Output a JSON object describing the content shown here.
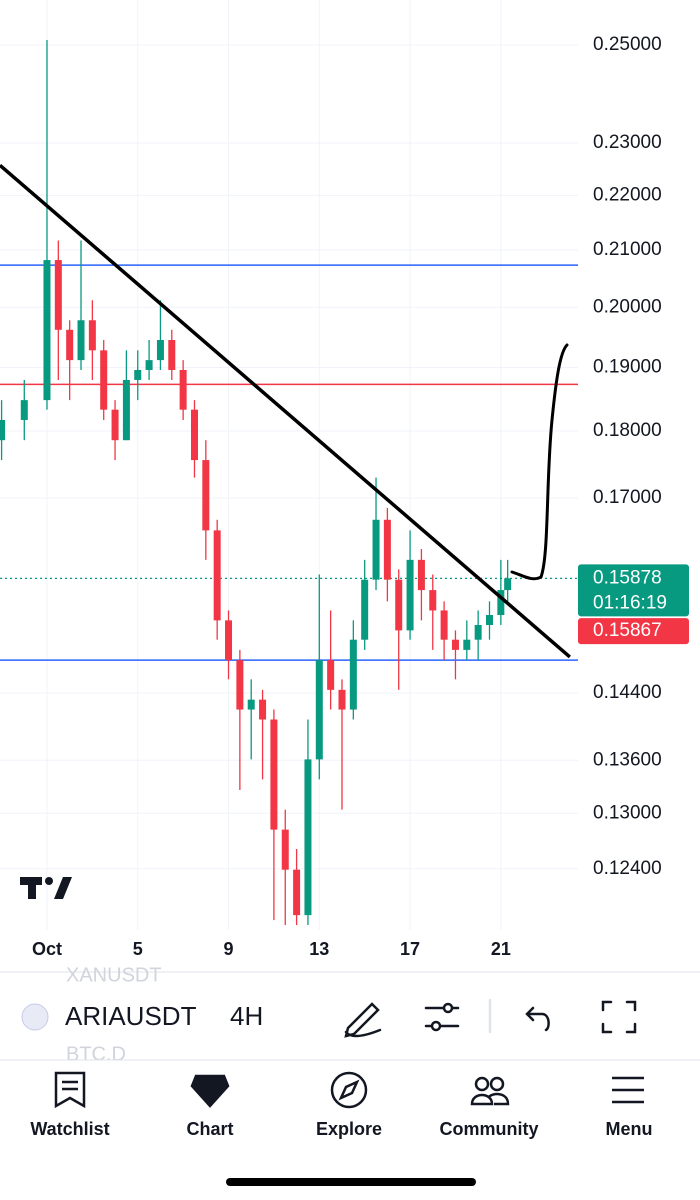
{
  "chart_data": {
    "type": "candlestick",
    "x": [
      -1,
      0,
      1,
      1.5,
      2,
      2.5,
      3,
      3.5,
      4,
      4.5,
      5,
      5.5,
      6,
      6.5,
      7,
      7.5,
      8,
      8.5,
      9,
      9.5,
      10,
      10.5,
      11,
      11.5,
      12,
      12.5,
      13,
      13.5,
      14,
      14.5,
      15,
      15.5,
      16,
      16.5,
      17,
      17.5,
      18,
      18.5,
      19,
      19.5,
      20,
      20.5,
      21,
      21.3
    ],
    "open": [
      0.1786,
      0.1817,
      0.1848,
      0.2082,
      0.1962,
      0.1912,
      0.1978,
      0.1928,
      0.1833,
      0.1786,
      0.188,
      0.1896,
      0.1912,
      0.1945,
      0.1896,
      0.1833,
      0.1756,
      0.1654,
      0.1532,
      0.1481,
      0.142,
      0.1432,
      0.1408,
      0.1282,
      0.1239,
      0.1192,
      0.1361,
      0.1481,
      0.1444,
      0.142,
      0.1507,
      0.1586,
      0.1669,
      0.1586,
      0.1519,
      0.1613,
      0.1572,
      0.1545,
      0.1507,
      0.1494,
      0.1507,
      0.1526,
      0.1539,
      0.1572
    ],
    "high": [
      0.1848,
      0.188,
      0.2511,
      0.2117,
      0.1978,
      0.2117,
      0.2012,
      0.1945,
      0.1848,
      0.1928,
      0.1928,
      0.1945,
      0.2012,
      0.1962,
      0.1912,
      0.1848,
      0.1786,
      0.1669,
      0.1545,
      0.1494,
      0.1457,
      0.1444,
      0.142,
      0.1304,
      0.1261,
      0.1408,
      0.1593,
      0.1545,
      0.1457,
      0.1532,
      0.1613,
      0.173,
      0.1686,
      0.16,
      0.1654,
      0.1628,
      0.1593,
      0.1557,
      0.1519,
      0.1532,
      0.1545,
      0.1557,
      0.1613,
      0.1613
    ],
    "low": [
      0.1756,
      0.1786,
      0.1833,
      0.188,
      0.1848,
      0.1896,
      0.188,
      0.1817,
      0.1756,
      0.1786,
      0.1848,
      0.188,
      0.1896,
      0.188,
      0.1817,
      0.173,
      0.1613,
      0.1507,
      0.1457,
      0.1326,
      0.1361,
      0.1338,
      0.1187,
      0.1182,
      0.1182,
      0.1182,
      0.1338,
      0.142,
      0.1304,
      0.1408,
      0.1494,
      0.1572,
      0.1557,
      0.1444,
      0.1507,
      0.1532,
      0.1494,
      0.1481,
      0.1457,
      0.1481,
      0.1481,
      0.1507,
      0.1526,
      0.1557
    ],
    "close": [
      0.1817,
      0.1848,
      0.2082,
      0.1962,
      0.1912,
      0.1978,
      0.1928,
      0.1833,
      0.1786,
      0.188,
      0.1896,
      0.1912,
      0.1945,
      0.1896,
      0.1833,
      0.1756,
      0.1654,
      0.1532,
      0.1481,
      0.142,
      0.1432,
      0.1408,
      0.1282,
      0.1239,
      0.1192,
      0.1361,
      0.1481,
      0.1444,
      0.142,
      0.1507,
      0.1586,
      0.1669,
      0.1586,
      0.1519,
      0.1613,
      0.1572,
      0.1545,
      0.1507,
      0.1494,
      0.1507,
      0.1526,
      0.1539,
      0.1572,
      0.15878
    ],
    "up_color": "#089981",
    "down_color": "#f23645",
    "xlim": [
      -1.07,
      24.4
    ],
    "xticks": [
      {
        "value": 1,
        "label": "Oct"
      },
      5,
      9,
      13,
      17,
      21
    ],
    "ylim": [
      0.1177,
      0.2598
    ],
    "log_scale": true,
    "grid": true,
    "yticks": [
      {
        "value": 0.25,
        "label": "0.25000"
      },
      {
        "value": 0.23,
        "label": "0.23000"
      },
      {
        "value": 0.22,
        "label": "0.22000"
      },
      {
        "value": 0.21,
        "label": "0.21000"
      },
      {
        "value": 0.2,
        "label": "0.20000"
      },
      {
        "value": 0.19,
        "label": "0.19000"
      },
      {
        "value": 0.18,
        "label": "0.18000"
      },
      {
        "value": 0.17,
        "label": "0.17000"
      },
      {
        "value": 0.144,
        "label": "0.14400"
      },
      {
        "value": 0.136,
        "label": "0.13600"
      },
      {
        "value": 0.13,
        "label": "0.13000"
      },
      {
        "value": 0.124,
        "label": "0.12400"
      }
    ],
    "hlines": [
      {
        "value": 0.2073,
        "color": "#2962ff"
      },
      {
        "value": 0.1873,
        "color": "#f23645"
      },
      {
        "value": 0.1481,
        "color": "#2962ff"
      }
    ],
    "trendline": {
      "x": [
        -1.07,
        24.04
      ],
      "y": [
        0.2257,
        0.1485
      ],
      "color": "#000000"
    },
    "last_price": 0.15878,
    "countdown": "01:16:19",
    "prev_price": 0.15867
  },
  "toolbar": {
    "symbol": "ARIAUSDT",
    "interval": "4H",
    "faded_above": "XANUSDT",
    "faded_below": "BTC.D"
  },
  "nav": {
    "items": [
      "Watchlist",
      "Chart",
      "Explore",
      "Community",
      "Menu"
    ]
  }
}
